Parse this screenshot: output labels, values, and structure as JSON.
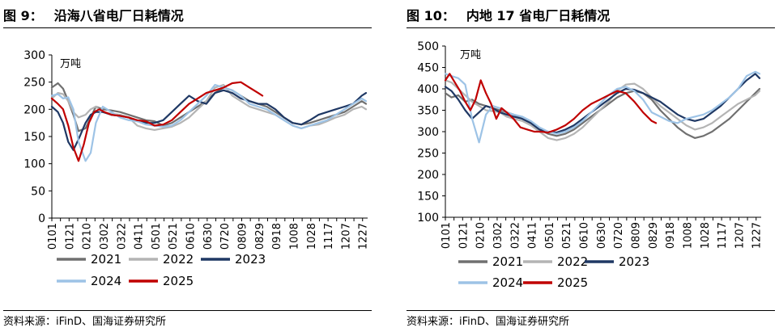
{
  "charts": [
    {
      "id": "left",
      "figure_label": "图 9：",
      "figure_title": "沿海八省电厂日耗情况",
      "source": "资料来源：iFinD、国海证券研究所"
    },
    {
      "id": "right",
      "figure_label": "图 10：",
      "figure_title": "内地 17 省电厂日耗情况",
      "source": "资料来源：iFinD、国海证券研究所"
    }
  ],
  "colors": {
    "2021": "#707070",
    "2022": "#b4b4b4",
    "2023": "#1f3864",
    "2024": "#9dc3e6",
    "2025": "#c00000"
  },
  "chart_data": [
    {
      "type": "line",
      "title": "沿海八省电厂日耗情况",
      "unit_label": "万吨",
      "ylim": [
        0,
        300
      ],
      "yticks": [
        0,
        50,
        100,
        150,
        200,
        250,
        300
      ],
      "x_tick_labels": [
        "0101",
        "0121",
        "0210",
        "0302",
        "0322",
        "0411",
        "0501",
        "0521",
        "0610",
        "0630",
        "0720",
        "0809",
        "0829",
        "0918",
        "1008",
        "1028",
        "1117",
        "1207",
        "1227"
      ],
      "x_days": [
        1,
        21,
        41,
        61,
        81,
        101,
        121,
        141,
        161,
        181,
        201,
        221,
        241,
        261,
        281,
        301,
        321,
        341,
        361
      ],
      "legend": [
        "2021",
        "2022",
        "2023",
        "2024",
        "2025"
      ],
      "series": [
        {
          "name": "2021",
          "x": [
            1,
            8,
            14,
            20,
            26,
            32,
            40,
            46,
            52,
            60,
            70,
            80,
            90,
            100,
            110,
            120,
            130,
            140,
            150,
            160,
            170,
            180,
            190,
            200,
            210,
            220,
            230,
            240,
            250,
            260,
            270,
            280,
            290,
            300,
            310,
            320,
            330,
            340,
            350,
            360,
            365
          ],
          "values": [
            240,
            248,
            238,
            215,
            190,
            160,
            165,
            185,
            205,
            200,
            198,
            195,
            190,
            185,
            180,
            178,
            170,
            175,
            185,
            195,
            205,
            215,
            230,
            240,
            235,
            225,
            215,
            210,
            205,
            195,
            185,
            175,
            172,
            175,
            180,
            185,
            190,
            195,
            205,
            215,
            210
          ]
        },
        {
          "name": "2022",
          "x": [
            1,
            8,
            14,
            20,
            26,
            32,
            40,
            46,
            52,
            60,
            70,
            80,
            90,
            100,
            110,
            120,
            130,
            140,
            150,
            160,
            170,
            180,
            190,
            200,
            210,
            220,
            230,
            240,
            250,
            260,
            270,
            280,
            290,
            300,
            310,
            320,
            330,
            340,
            350,
            360,
            365
          ],
          "values": [
            220,
            230,
            228,
            215,
            195,
            185,
            190,
            200,
            205,
            195,
            192,
            190,
            185,
            170,
            165,
            162,
            165,
            168,
            175,
            185,
            200,
            215,
            240,
            245,
            225,
            215,
            205,
            200,
            195,
            190,
            180,
            170,
            165,
            170,
            172,
            178,
            185,
            190,
            200,
            205,
            200
          ]
        },
        {
          "name": "2023",
          "x": [
            1,
            8,
            14,
            20,
            26,
            32,
            40,
            46,
            52,
            60,
            70,
            80,
            90,
            100,
            110,
            120,
            130,
            140,
            150,
            160,
            170,
            180,
            190,
            200,
            210,
            220,
            230,
            240,
            250,
            260,
            270,
            280,
            290,
            300,
            310,
            320,
            330,
            340,
            350,
            360,
            365
          ],
          "values": [
            205,
            195,
            175,
            140,
            125,
            145,
            175,
            190,
            195,
            195,
            190,
            188,
            185,
            178,
            175,
            175,
            180,
            195,
            210,
            225,
            215,
            210,
            230,
            235,
            230,
            220,
            215,
            210,
            210,
            200,
            185,
            175,
            172,
            180,
            190,
            195,
            200,
            205,
            210,
            225,
            230
          ]
        },
        {
          "name": "2024",
          "x": [
            1,
            8,
            14,
            20,
            26,
            32,
            40,
            46,
            52,
            60,
            70,
            80,
            90,
            100,
            110,
            120,
            130,
            140,
            150,
            160,
            170,
            180,
            190,
            200,
            210,
            220,
            230,
            240,
            250,
            260,
            270,
            280,
            290,
            300,
            310,
            320,
            330,
            340,
            350,
            360,
            365
          ],
          "values": [
            225,
            228,
            220,
            222,
            200,
            140,
            105,
            120,
            175,
            205,
            195,
            185,
            180,
            178,
            172,
            170,
            168,
            170,
            180,
            195,
            210,
            225,
            245,
            240,
            235,
            225,
            210,
            205,
            200,
            190,
            180,
            170,
            165,
            170,
            175,
            180,
            190,
            200,
            210,
            220,
            215
          ]
        },
        {
          "name": "2025",
          "x": [
            1,
            8,
            14,
            20,
            26,
            32,
            38,
            44,
            50,
            56,
            62,
            70,
            80,
            90,
            100,
            110,
            120,
            130,
            140,
            150,
            160,
            170,
            180,
            190,
            200,
            210,
            220,
            230,
            240,
            245
          ],
          "values": [
            220,
            210,
            200,
            170,
            130,
            105,
            135,
            175,
            195,
            200,
            195,
            190,
            188,
            185,
            180,
            178,
            170,
            172,
            180,
            195,
            210,
            220,
            230,
            235,
            240,
            248,
            250,
            240,
            230,
            225
          ]
        }
      ]
    },
    {
      "type": "line",
      "title": "内地 17 省电厂日耗情况",
      "unit_label": "万吨",
      "ylim": [
        100,
        500
      ],
      "yticks": [
        100,
        150,
        200,
        250,
        300,
        350,
        400,
        450,
        500
      ],
      "x_tick_labels": [
        "0101",
        "0121",
        "0210",
        "0302",
        "0322",
        "0411",
        "0501",
        "0521",
        "0610",
        "0630",
        "0720",
        "0809",
        "0829",
        "0918",
        "1008",
        "1028",
        "1117",
        "1207",
        "1227"
      ],
      "x_days": [
        1,
        21,
        41,
        61,
        81,
        101,
        121,
        141,
        161,
        181,
        201,
        221,
        241,
        261,
        281,
        301,
        321,
        341,
        361
      ],
      "legend": [
        "2021",
        "2022",
        "2023",
        "2024",
        "2025"
      ],
      "series": [
        {
          "name": "2021",
          "x": [
            1,
            8,
            16,
            24,
            32,
            40,
            48,
            56,
            64,
            72,
            80,
            90,
            100,
            110,
            120,
            130,
            140,
            150,
            160,
            170,
            180,
            190,
            200,
            210,
            220,
            230,
            240,
            250,
            260,
            270,
            280,
            290,
            300,
            310,
            320,
            330,
            340,
            350,
            360,
            365
          ],
          "values": [
            390,
            380,
            385,
            370,
            375,
            365,
            360,
            355,
            350,
            345,
            340,
            330,
            320,
            305,
            295,
            290,
            295,
            305,
            320,
            335,
            350,
            365,
            380,
            390,
            395,
            390,
            375,
            350,
            330,
            310,
            295,
            285,
            290,
            300,
            315,
            330,
            350,
            370,
            390,
            400
          ]
        },
        {
          "name": "2022",
          "x": [
            1,
            8,
            16,
            24,
            32,
            40,
            48,
            56,
            64,
            72,
            80,
            90,
            100,
            110,
            120,
            130,
            140,
            150,
            160,
            170,
            180,
            190,
            200,
            210,
            220,
            230,
            240,
            250,
            260,
            270,
            280,
            290,
            300,
            310,
            320,
            330,
            340,
            350,
            360,
            365
          ],
          "values": [
            420,
            415,
            400,
            385,
            370,
            360,
            350,
            348,
            345,
            335,
            330,
            325,
            315,
            300,
            285,
            280,
            285,
            295,
            310,
            330,
            350,
            370,
            395,
            410,
            412,
            400,
            380,
            360,
            345,
            330,
            315,
            305,
            310,
            320,
            335,
            350,
            365,
            375,
            385,
            395
          ]
        },
        {
          "name": "2023",
          "x": [
            1,
            8,
            16,
            24,
            32,
            40,
            48,
            56,
            64,
            72,
            80,
            90,
            100,
            110,
            120,
            130,
            140,
            150,
            160,
            170,
            180,
            190,
            200,
            210,
            220,
            230,
            240,
            250,
            260,
            270,
            280,
            290,
            300,
            310,
            320,
            330,
            340,
            350,
            360,
            365
          ],
          "values": [
            405,
            395,
            375,
            350,
            330,
            345,
            360,
            355,
            345,
            340,
            335,
            330,
            320,
            305,
            300,
            298,
            305,
            315,
            330,
            345,
            360,
            375,
            390,
            400,
            398,
            390,
            380,
            370,
            355,
            340,
            330,
            325,
            330,
            345,
            360,
            380,
            400,
            420,
            435,
            425
          ]
        },
        {
          "name": "2024",
          "x": [
            1,
            8,
            16,
            24,
            32,
            40,
            48,
            56,
            64,
            72,
            80,
            90,
            100,
            110,
            120,
            130,
            140,
            150,
            160,
            170,
            180,
            190,
            200,
            210,
            220,
            230,
            240,
            250,
            260,
            270,
            280,
            290,
            300,
            310,
            320,
            330,
            340,
            350,
            360,
            365
          ],
          "values": [
            435,
            430,
            425,
            410,
            330,
            275,
            340,
            360,
            355,
            345,
            340,
            335,
            325,
            310,
            300,
            295,
            300,
            310,
            325,
            345,
            365,
            385,
            400,
            405,
            395,
            375,
            345,
            335,
            325,
            320,
            330,
            335,
            340,
            350,
            365,
            380,
            400,
            430,
            440,
            435
          ]
        },
        {
          "name": "2025",
          "x": [
            1,
            6,
            12,
            18,
            24,
            30,
            36,
            42,
            48,
            54,
            60,
            66,
            72,
            80,
            88,
            96,
            104,
            112,
            120,
            130,
            140,
            150,
            160,
            170,
            180,
            190,
            200,
            210,
            220,
            230,
            240,
            245
          ],
          "values": [
            420,
            435,
            415,
            395,
            370,
            350,
            375,
            420,
            390,
            365,
            330,
            355,
            345,
            330,
            310,
            305,
            300,
            300,
            298,
            305,
            315,
            330,
            350,
            365,
            375,
            385,
            395,
            390,
            370,
            345,
            325,
            320
          ]
        }
      ]
    }
  ]
}
